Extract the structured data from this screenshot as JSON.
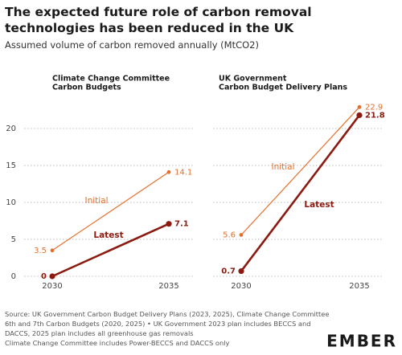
{
  "title": "The expected future role of carbon removal technologies has been reduced in the UK",
  "subtitle": "Assumed volume of carbon removed annually (MtCO2)",
  "source": [
    "Source: UK Government Carbon Budget Delivery Plans (2023, 2025), Climate Change Committee 6th and 7th Carbon Budgets (2020, 2025) • UK Government 2023 plan includes BECCS and DACCS, 2025 plan includes all greenhouse gas removals",
    "Climate Change Committee includes Power-BECCS and DACCS only"
  ],
  "logo": "EMBER",
  "chart_data": [
    {
      "type": "line",
      "title": [
        "Climate Change Committee",
        "Carbon Budgets"
      ],
      "x": [
        2030,
        2035
      ],
      "xticks": [
        2030,
        2035
      ],
      "series": [
        {
          "name": "Initial",
          "color": "#e5702c",
          "values": [
            3.5,
            14.1
          ]
        },
        {
          "name": "Latest",
          "color": "#8b1a10",
          "values": [
            0,
            7.1
          ]
        }
      ],
      "ylim": [
        0,
        23
      ],
      "yticks": [
        0,
        5,
        10,
        15,
        20
      ],
      "grid": true,
      "show_ytick_labels": true
    },
    {
      "type": "line",
      "title": [
        "UK Government",
        "Carbon Budget Delivery Plans"
      ],
      "x": [
        2030,
        2035
      ],
      "xticks": [
        2030,
        2035
      ],
      "series": [
        {
          "name": "Initial",
          "color": "#e5702c",
          "values": [
            5.6,
            22.9
          ]
        },
        {
          "name": "Latest",
          "color": "#8b1a10",
          "values": [
            0.7,
            21.8
          ]
        }
      ],
      "ylim": [
        0,
        23
      ],
      "yticks": [
        0,
        5,
        10,
        15,
        20
      ],
      "grid": true,
      "show_ytick_labels": false
    }
  ]
}
